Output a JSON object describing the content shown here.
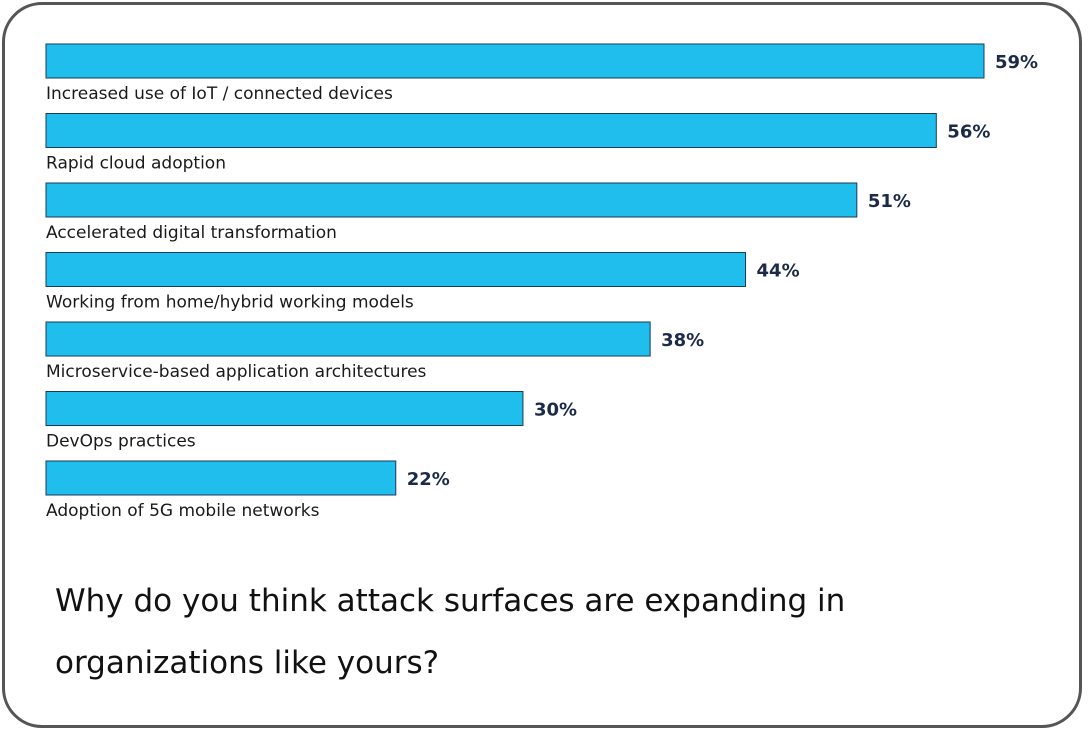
{
  "colors": {
    "bar_fill": "#1fbeec",
    "bar_stroke": "#1a3a5a",
    "value_text": "#1b2a47",
    "label_text": "#1a1a1a",
    "card_border": "#555555"
  },
  "question": "Why do you think attack surfaces are expanding in organizations like yours?",
  "chart_data": {
    "type": "bar",
    "orientation": "horizontal",
    "categories": [
      "Increased use of IoT / connected devices",
      "Rapid cloud adoption",
      "Accelerated digital transformation",
      "Working from home/hybrid working models",
      "Microservice-based application architectures",
      "DevOps practices",
      "Adoption of 5G mobile networks"
    ],
    "values": [
      59,
      56,
      51,
      44,
      38,
      30,
      22
    ],
    "value_labels": [
      "59%",
      "56%",
      "51%",
      "44%",
      "38%",
      "30%",
      "22%"
    ],
    "unit": "%",
    "xlim": [
      0,
      64
    ],
    "grid": false,
    "legend": "none"
  }
}
